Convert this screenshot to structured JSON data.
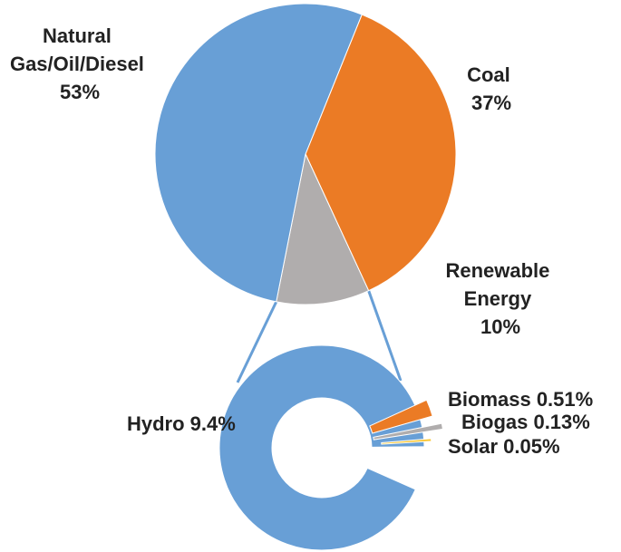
{
  "chart_data": [
    {
      "type": "pie",
      "slices": [
        {
          "label_lines": [
            "Natural",
            "Gas/Oil/Diesel",
            "53%"
          ],
          "value": 53,
          "color": "#689FD6"
        },
        {
          "label_lines": [
            "Coal",
            "37%"
          ],
          "value": 37,
          "color": "#EB7B25"
        },
        {
          "label_lines": [
            "Renewable",
            "Energy",
            "10%"
          ],
          "value": 10,
          "color": "#B0ADAD"
        }
      ]
    },
    {
      "type": "donut",
      "slices": [
        {
          "label": "Hydro 9.4%",
          "value": 9.4,
          "color": "#689FD6"
        },
        {
          "label": "Biomass 0.51%",
          "value": 0.51,
          "color": "#EB7B25"
        },
        {
          "label": "Biogas 0.13%",
          "value": 0.13,
          "color": "#B0ADAD"
        },
        {
          "label": "Solar 0.05%",
          "value": 0.05,
          "color": "#F9C531"
        }
      ]
    }
  ]
}
